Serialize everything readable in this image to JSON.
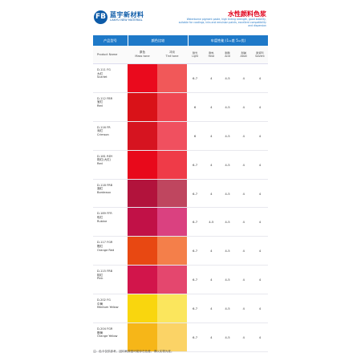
{
  "header": {
    "logo_glyph": "FB",
    "brand_name": "蓝宇新材料",
    "brand_en": "LANYU NEW MATERIAL",
    "title": "水性颜料色浆",
    "subtitle": "Waterborne pigment paste, high tinting strength, good stability, suitable for coatings, inks and emulsion paints, excellent compatibility and dispersion"
  },
  "table": {
    "col_headers": {
      "product": "产品型号",
      "color": "颜色比较",
      "fastness": "牢度性能 (1=差 5=优)"
    },
    "sub_headers": {
      "product": "Product Name",
      "mass_tone": [
        "原色",
        "Mass tone"
      ],
      "tint_tone": [
        "冲淡",
        "Tint tone"
      ],
      "fastness": [
        [
          "耐光",
          "Light"
        ],
        [
          "耐热",
          "Heat"
        ],
        [
          "耐酸",
          "Acid"
        ],
        [
          "耐碱",
          "Alkali"
        ],
        [
          "耐溶剂",
          "Solvent"
        ]
      ]
    },
    "rows": [
      {
        "code": "D-111 FG",
        "cn": "大红",
        "en": "Scarlet",
        "mass": "#ea0a1d",
        "tint": "#f15859",
        "values": [
          "6-7",
          "4",
          "4-5",
          "4",
          "4"
        ]
      },
      {
        "code": "D-112 FBR",
        "cn": "宝红",
        "en": "Red",
        "mass": "#d91218",
        "tint": "#ef4752",
        "values": [
          "6",
          "4",
          "4-5",
          "4",
          "4"
        ]
      },
      {
        "code": "D-116 FR",
        "cn": "深红",
        "en": "Crimson",
        "mass": "#d61420",
        "tint": "#f0505f",
        "values": [
          "6",
          "4",
          "4-5",
          "4",
          "4"
        ]
      },
      {
        "code": "D-181 RDY",
        "cn": "艳红(大红)",
        "en": "Red",
        "mass": "#e8091b",
        "tint": "#ef3b48",
        "values": [
          "6-7",
          "4",
          "4-5",
          "4",
          "4"
        ]
      },
      {
        "code": "D-118 FRB",
        "cn": "酒红",
        "en": "Bordeaux",
        "mass": "#b2133c",
        "tint": "#bf465f",
        "values": [
          "6-7",
          "4",
          "4-5",
          "4",
          "4"
        ]
      },
      {
        "code": "D-189 FFR",
        "cn": "玫红",
        "en": "Rubine",
        "mass": "#c11147",
        "tint": "#da4180",
        "values": [
          "6-7",
          "4-5",
          "4-5",
          "4",
          "4"
        ]
      },
      {
        "code": "D-117 FGR",
        "cn": "橙红",
        "en": "Orange Red",
        "mass": "#e84812",
        "tint": "#f47f4a",
        "values": [
          "6-7",
          "4",
          "4-5",
          "4",
          "4"
        ]
      },
      {
        "code": "D-115 FRB",
        "cn": "桃红",
        "en": "Pink",
        "mass": "#d2154b",
        "tint": "#e4476e",
        "values": [
          "6-7",
          "4",
          "4-5",
          "4",
          "4"
        ]
      },
      {
        "code": "D-202 FG",
        "cn": "中黄",
        "en": "Medium Yellow",
        "mass": "#f9d60e",
        "tint": "#fbe65d",
        "values": [
          "6-7",
          "4",
          "4-5",
          "4",
          "4"
        ]
      },
      {
        "code": "D-204 FGR",
        "cn": "橙黄",
        "en": "Orange Yellow",
        "mass": "#f6b618",
        "tint": "#fbd366",
        "values": [
          "6-7",
          "4",
          "4-5",
          "4",
          "4"
        ]
      }
    ]
  },
  "footer": "注：色卡仅供参考，因印刷原因可能存在色差，请以实物为准。"
}
